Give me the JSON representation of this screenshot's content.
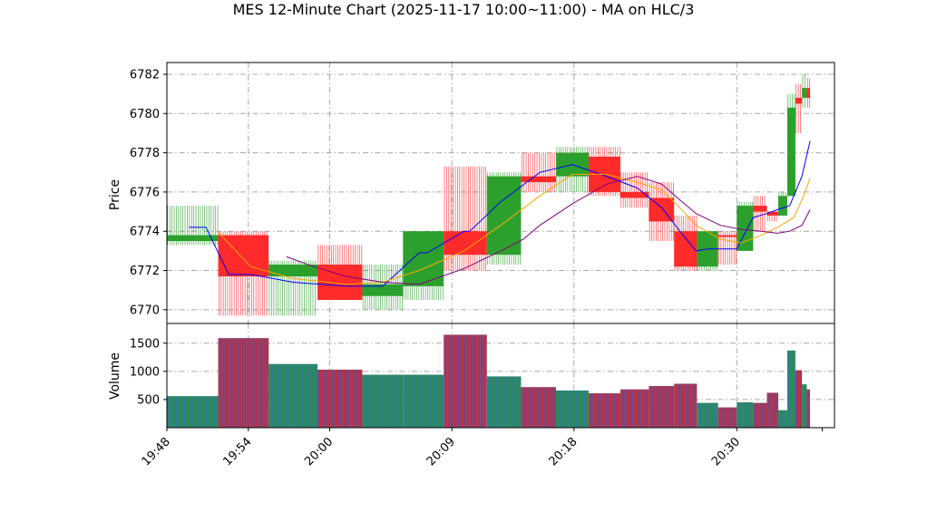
{
  "chart_data": {
    "type": "ohlc-bar-with-volume",
    "title": "MES 12-Minute Chart (2025-11-17 10:00~11:00) - MA on HLC/3",
    "price_panel": {
      "ylabel": "Price",
      "ylim": [
        6769.3,
        6782.6
      ],
      "yticks": [
        6770,
        6772,
        6774,
        6776,
        6778,
        6780,
        6782
      ]
    },
    "volume_panel": {
      "ylabel": "Volume",
      "ylim": [
        0,
        1850
      ],
      "yticks": [
        500,
        1000,
        1500
      ]
    },
    "x_axis": {
      "xlim": [
        19.8,
        20.62
      ],
      "ticks": [
        {
          "value": 19.8,
          "label": "19:48"
        },
        {
          "value": 19.9,
          "label": "19:54"
        },
        {
          "value": 20.0,
          "label": "20:00"
        },
        {
          "value": 20.15,
          "label": "20:09"
        },
        {
          "value": 20.3,
          "label": "20:18"
        },
        {
          "value": 20.5,
          "label": "20:30"
        }
      ]
    },
    "grid": true,
    "bars": [
      {
        "x0": 19.8,
        "x1": 19.863,
        "open": 6773.5,
        "close": 6773.8,
        "high": 6775.3,
        "low": 6773.3,
        "volume": 560,
        "color": "green"
      },
      {
        "x0": 19.863,
        "x1": 19.925,
        "open": 6773.8,
        "close": 6771.7,
        "high": 6774.0,
        "low": 6769.7,
        "volume": 1590,
        "color": "red"
      },
      {
        "x0": 19.925,
        "x1": 19.985,
        "open": 6771.7,
        "close": 6772.3,
        "high": 6772.5,
        "low": 6769.7,
        "volume": 1130,
        "color": "green"
      },
      {
        "x0": 19.985,
        "x1": 20.04,
        "open": 6772.3,
        "close": 6770.5,
        "high": 6773.3,
        "low": 6770.5,
        "volume": 1030,
        "color": "red"
      },
      {
        "x0": 20.04,
        "x1": 20.09,
        "open": 6770.7,
        "close": 6771.3,
        "high": 6772.3,
        "low": 6770.0,
        "volume": 940,
        "color": "green"
      },
      {
        "x0": 20.09,
        "x1": 20.14,
        "open": 6771.2,
        "close": 6774.0,
        "high": 6774.0,
        "low": 6770.5,
        "volume": 940,
        "color": "green"
      },
      {
        "x0": 20.14,
        "x1": 20.193,
        "open": 6774.0,
        "close": 6772.8,
        "high": 6777.3,
        "low": 6772.0,
        "volume": 1650,
        "color": "red"
      },
      {
        "x0": 20.193,
        "x1": 20.235,
        "open": 6772.8,
        "close": 6776.8,
        "high": 6777.0,
        "low": 6772.3,
        "volume": 910,
        "color": "green"
      },
      {
        "x0": 20.235,
        "x1": 20.278,
        "open": 6776.8,
        "close": 6776.5,
        "high": 6778.0,
        "low": 6776.0,
        "volume": 720,
        "color": "red"
      },
      {
        "x0": 20.278,
        "x1": 20.318,
        "open": 6776.8,
        "close": 6778.0,
        "high": 6778.3,
        "low": 6776.0,
        "volume": 660,
        "color": "green"
      },
      {
        "x0": 20.318,
        "x1": 20.357,
        "open": 6777.8,
        "close": 6776.0,
        "high": 6778.3,
        "low": 6775.8,
        "volume": 610,
        "color": "red"
      },
      {
        "x0": 20.357,
        "x1": 20.392,
        "open": 6776.0,
        "close": 6775.7,
        "high": 6777.0,
        "low": 6775.2,
        "volume": 680,
        "color": "red"
      },
      {
        "x0": 20.392,
        "x1": 20.423,
        "open": 6775.7,
        "close": 6774.5,
        "high": 6776.5,
        "low": 6773.5,
        "volume": 740,
        "color": "red"
      },
      {
        "x0": 20.423,
        "x1": 20.451,
        "open": 6774.0,
        "close": 6772.2,
        "high": 6774.8,
        "low": 6772.0,
        "volume": 780,
        "color": "red"
      },
      {
        "x0": 20.451,
        "x1": 20.477,
        "open": 6772.2,
        "close": 6774.0,
        "high": 6774.0,
        "low": 6772.0,
        "volume": 440,
        "color": "green"
      },
      {
        "x0": 20.477,
        "x1": 20.5,
        "open": 6773.8,
        "close": 6773.8,
        "high": 6774.0,
        "low": 6772.3,
        "volume": 360,
        "color": "red"
      },
      {
        "x0": 20.5,
        "x1": 20.52,
        "open": 6773.0,
        "close": 6775.3,
        "high": 6775.5,
        "low": 6773.0,
        "volume": 450,
        "color": "green"
      },
      {
        "x0": 20.52,
        "x1": 20.537,
        "open": 6775.3,
        "close": 6775.0,
        "high": 6775.8,
        "low": 6774.0,
        "volume": 440,
        "color": "red"
      },
      {
        "x0": 20.537,
        "x1": 20.551,
        "open": 6775.0,
        "close": 6774.8,
        "high": 6775.0,
        "low": 6774.5,
        "volume": 620,
        "color": "red"
      },
      {
        "x0": 20.551,
        "x1": 20.562,
        "open": 6774.8,
        "close": 6775.8,
        "high": 6776.0,
        "low": 6774.8,
        "volume": 310,
        "color": "green"
      },
      {
        "x0": 20.562,
        "x1": 20.572,
        "open": 6775.8,
        "close": 6780.3,
        "high": 6781.0,
        "low": 6775.8,
        "volume": 1370,
        "color": "green"
      },
      {
        "x0": 20.572,
        "x1": 20.58,
        "open": 6780.8,
        "close": 6780.5,
        "high": 6781.5,
        "low": 6779.0,
        "volume": 1020,
        "color": "red"
      },
      {
        "x0": 20.58,
        "x1": 20.586,
        "open": 6780.8,
        "close": 6781.3,
        "high": 6782.0,
        "low": 6780.3,
        "volume": 770,
        "color": "green"
      },
      {
        "x0": 20.586,
        "x1": 20.59,
        "open": 6781.3,
        "close": 6780.8,
        "high": 6781.8,
        "low": 6780.3,
        "volume": 680,
        "color": "red"
      }
    ],
    "ma_lines": [
      {
        "color": "#0000ff",
        "points": [
          [
            19.827,
            6774.2
          ],
          [
            19.848,
            6774.2
          ],
          [
            19.876,
            6771.8
          ],
          [
            19.903,
            6771.8
          ],
          [
            19.955,
            6771.4
          ],
          [
            20.02,
            6771.2
          ],
          [
            20.065,
            6771.2
          ],
          [
            20.11,
            6772.9
          ],
          [
            20.12,
            6772.9
          ],
          [
            20.165,
            6774.0
          ],
          [
            20.172,
            6774.0
          ],
          [
            20.21,
            6775.5
          ],
          [
            20.258,
            6777.0
          ],
          [
            20.298,
            6777.4
          ],
          [
            20.34,
            6776.8
          ],
          [
            20.378,
            6776.2
          ],
          [
            20.408,
            6775.2
          ],
          [
            20.43,
            6774.0
          ],
          [
            20.45,
            6773.0
          ],
          [
            20.465,
            6773.1
          ],
          [
            20.5,
            6773.1
          ],
          [
            20.52,
            6774.7
          ],
          [
            20.537,
            6774.9
          ],
          [
            20.55,
            6775.1
          ],
          [
            20.565,
            6775.3
          ],
          [
            20.58,
            6776.8
          ],
          [
            20.59,
            6778.6
          ]
        ]
      },
      {
        "color": "#ffa500",
        "points": [
          [
            19.862,
            6774.0
          ],
          [
            19.903,
            6772.2
          ],
          [
            19.955,
            6771.6
          ],
          [
            20.02,
            6771.3
          ],
          [
            20.065,
            6771.4
          ],
          [
            20.11,
            6772.0
          ],
          [
            20.165,
            6773.0
          ],
          [
            20.21,
            6774.3
          ],
          [
            20.258,
            6775.8
          ],
          [
            20.298,
            6776.9
          ],
          [
            20.34,
            6776.9
          ],
          [
            20.378,
            6776.5
          ],
          [
            20.408,
            6776.1
          ],
          [
            20.43,
            6775.2
          ],
          [
            20.45,
            6774.3
          ],
          [
            20.48,
            6773.6
          ],
          [
            20.505,
            6773.4
          ],
          [
            20.53,
            6773.8
          ],
          [
            20.55,
            6774.2
          ],
          [
            20.57,
            6774.7
          ],
          [
            20.58,
            6775.6
          ],
          [
            20.59,
            6776.7
          ]
        ]
      },
      {
        "color": "#800080",
        "points": [
          [
            19.947,
            6772.7
          ],
          [
            19.98,
            6772.2
          ],
          [
            20.02,
            6771.7
          ],
          [
            20.065,
            6771.4
          ],
          [
            20.11,
            6771.3
          ],
          [
            20.165,
            6772.1
          ],
          [
            20.21,
            6773.0
          ],
          [
            20.238,
            6773.6
          ],
          [
            20.258,
            6774.3
          ],
          [
            20.298,
            6775.4
          ],
          [
            20.34,
            6776.4
          ],
          [
            20.378,
            6776.8
          ],
          [
            20.408,
            6776.4
          ],
          [
            20.43,
            6775.6
          ],
          [
            20.45,
            6774.9
          ],
          [
            20.48,
            6774.3
          ],
          [
            20.505,
            6774.1
          ],
          [
            20.53,
            6774.0
          ],
          [
            20.55,
            6773.9
          ],
          [
            20.565,
            6774.0
          ],
          [
            20.58,
            6774.3
          ],
          [
            20.59,
            6775.1
          ]
        ]
      }
    ]
  }
}
